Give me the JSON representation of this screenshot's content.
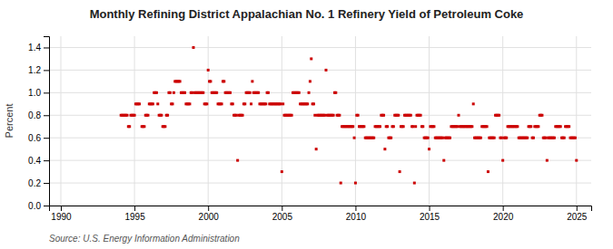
{
  "chart_data": {
    "type": "scatter",
    "title": "Monthly Refining District Appalachian No. 1 Refinery Yield of Petroleum Coke",
    "ylabel": "Percent",
    "annotation": "Source: U.S. Energy Information Administration",
    "color": "#cc0000",
    "marker": "square",
    "grid": true,
    "xlim": [
      1989.2,
      2026.0
    ],
    "ylim": [
      0.0,
      1.5
    ],
    "xticks": [
      1990,
      1995,
      2000,
      2005,
      2010,
      2015,
      2020,
      2025
    ],
    "yticks": [
      {
        "value": 0.0,
        "label": "0.0"
      },
      0.2,
      0.4,
      0.6,
      0.8,
      {
        "value": 1.0,
        "label": "1.0"
      },
      1.2,
      1.4
    ],
    "x": [
      1994.083,
      1994.167,
      1994.25,
      1994.333,
      1994.417,
      1994.5,
      1994.583,
      1994.667,
      1994.75,
      1994.833,
      1994.917,
      1995.0,
      1995.083,
      1995.167,
      1995.25,
      1995.333,
      1995.5,
      1995.583,
      1995.667,
      1995.75,
      1995.833,
      1995.917,
      1996.0,
      1996.083,
      1996.167,
      1996.25,
      1996.333,
      1996.417,
      1996.5,
      1996.583,
      1996.667,
      1996.75,
      1996.833,
      1996.917,
      1997.0,
      1997.083,
      1997.167,
      1997.25,
      1997.333,
      1997.417,
      1997.5,
      1997.583,
      1997.667,
      1997.75,
      1997.833,
      1997.917,
      1998.0,
      1998.083,
      1998.167,
      1998.25,
      1998.333,
      1998.417,
      1998.5,
      1998.583,
      1998.667,
      1998.75,
      1998.833,
      1998.917,
      1999.0,
      1999.083,
      1999.167,
      1999.25,
      1999.333,
      1999.417,
      1999.5,
      1999.583,
      1999.667,
      1999.75,
      1999.833,
      1999.917,
      2000.0,
      2000.083,
      2000.167,
      2000.25,
      2000.333,
      2000.417,
      2000.5,
      2000.583,
      2000.667,
      2000.75,
      2000.833,
      2000.917,
      2001.0,
      2001.083,
      2001.167,
      2001.25,
      2001.333,
      2001.417,
      2001.5,
      2001.583,
      2001.667,
      2001.75,
      2001.833,
      2001.917,
      2002.0,
      2002.083,
      2002.167,
      2002.25,
      2002.333,
      2002.417,
      2002.5,
      2002.583,
      2002.667,
      2002.75,
      2002.833,
      2002.917,
      2003.0,
      2003.083,
      2003.167,
      2003.25,
      2003.333,
      2003.417,
      2003.5,
      2003.583,
      2003.667,
      2003.75,
      2003.833,
      2003.917,
      2004.0,
      2004.083,
      2004.167,
      2004.25,
      2004.333,
      2004.417,
      2004.5,
      2004.583,
      2004.667,
      2004.75,
      2004.833,
      2004.917,
      2005.0,
      2005.083,
      2005.167,
      2005.25,
      2005.333,
      2005.417,
      2005.5,
      2005.583,
      2005.667,
      2005.75,
      2005.833,
      2005.917,
      2006.0,
      2006.083,
      2006.167,
      2006.25,
      2006.333,
      2006.417,
      2006.5,
      2006.583,
      2006.667,
      2006.75,
      2006.833,
      2006.917,
      2007.0,
      2007.083,
      2007.167,
      2007.25,
      2007.333,
      2007.417,
      2007.5,
      2007.583,
      2007.667,
      2007.75,
      2007.833,
      2007.917,
      2008.0,
      2008.083,
      2008.167,
      2008.25,
      2008.333,
      2008.417,
      2008.5,
      2008.583,
      2008.667,
      2008.75,
      2008.833,
      2008.917,
      2009.0,
      2009.083,
      2009.167,
      2009.25,
      2009.333,
      2009.417,
      2009.5,
      2009.583,
      2009.667,
      2009.75,
      2009.833,
      2009.917,
      2010.0,
      2010.083,
      2010.167,
      2010.25,
      2010.333,
      2010.417,
      2010.5,
      2010.583,
      2010.667,
      2010.75,
      2010.833,
      2010.917,
      2011.0,
      2011.083,
      2011.167,
      2011.25,
      2011.333,
      2011.417,
      2011.5,
      2011.583,
      2011.667,
      2011.75,
      2011.833,
      2011.917,
      2012.0,
      2012.083,
      2012.167,
      2012.25,
      2012.333,
      2012.417,
      2012.5,
      2012.583,
      2012.667,
      2012.75,
      2012.833,
      2012.917,
      2013.0,
      2013.083,
      2013.167,
      2013.25,
      2013.333,
      2013.417,
      2013.5,
      2013.583,
      2013.667,
      2013.75,
      2013.833,
      2013.917,
      2014.0,
      2014.083,
      2014.167,
      2014.25,
      2014.333,
      2014.417,
      2014.5,
      2014.583,
      2014.667,
      2014.75,
      2014.833,
      2014.917,
      2015.0,
      2015.083,
      2015.167,
      2015.25,
      2015.333,
      2015.417,
      2015.5,
      2015.583,
      2015.667,
      2015.75,
      2015.833,
      2015.917,
      2016.0,
      2016.083,
      2016.167,
      2016.25,
      2016.333,
      2016.417,
      2016.5,
      2016.583,
      2016.667,
      2016.75,
      2016.833,
      2016.917,
      2017.0,
      2017.083,
      2017.167,
      2017.25,
      2017.333,
      2017.417,
      2017.5,
      2017.583,
      2017.667,
      2017.75,
      2017.833,
      2017.917,
      2018.0,
      2018.083,
      2018.167,
      2018.25,
      2018.333,
      2018.417,
      2018.5,
      2018.583,
      2018.667,
      2018.75,
      2018.833,
      2018.917,
      2019.0,
      2019.083,
      2019.167,
      2019.25,
      2019.333,
      2019.417,
      2019.5,
      2019.583,
      2019.667,
      2019.75,
      2019.833,
      2019.917,
      2020.0,
      2020.083,
      2020.167,
      2020.25,
      2020.333,
      2020.417,
      2020.5,
      2020.583,
      2020.667,
      2020.75,
      2020.833,
      2020.917,
      2021.0,
      2021.083,
      2021.167,
      2021.25,
      2021.333,
      2021.417,
      2021.5,
      2021.583,
      2021.667,
      2021.75,
      2021.833,
      2021.917,
      2022.0,
      2022.083,
      2022.167,
      2022.25,
      2022.333,
      2022.417,
      2022.5,
      2022.583,
      2022.667,
      2022.75,
      2022.833,
      2022.917,
      2023.0,
      2023.083,
      2023.167,
      2023.25,
      2023.333,
      2023.417,
      2023.5,
      2023.583,
      2023.667,
      2023.75,
      2023.833,
      2023.917,
      2024.0,
      2024.083,
      2024.167,
      2024.25,
      2024.333,
      2024.417,
      2024.5,
      2024.583,
      2024.667,
      2024.75,
      2024.833,
      2024.917,
      2025.0
    ],
    "values": [
      0.8,
      0.8,
      0.8,
      0.8,
      0.8,
      0.8,
      0.7,
      0.7,
      0.8,
      0.8,
      0.8,
      0.8,
      0.9,
      0.9,
      0.9,
      0.9,
      0.7,
      0.7,
      0.7,
      0.8,
      0.8,
      0.8,
      0.9,
      0.9,
      0.9,
      0.9,
      1.0,
      1.0,
      1.0,
      0.9,
      0.8,
      0.8,
      0.8,
      0.7,
      0.7,
      0.7,
      0.8,
      0.8,
      1.0,
      1.0,
      0.9,
      0.9,
      1.0,
      1.1,
      1.1,
      1.1,
      1.1,
      1.1,
      1.0,
      1.0,
      1.0,
      1.0,
      0.9,
      0.9,
      0.9,
      0.9,
      1.0,
      1.0,
      1.4,
      1.0,
      1.0,
      1.0,
      1.0,
      1.0,
      1.0,
      1.0,
      1.0,
      0.9,
      0.9,
      0.9,
      1.2,
      1.1,
      1.1,
      1.0,
      1.0,
      1.0,
      1.0,
      1.0,
      0.9,
      0.9,
      0.9,
      0.9,
      1.1,
      1.1,
      1.0,
      1.0,
      1.0,
      1.0,
      1.0,
      0.9,
      0.9,
      0.8,
      0.8,
      0.8,
      0.4,
      0.8,
      0.8,
      0.8,
      0.8,
      0.9,
      0.9,
      1.0,
      1.0,
      1.0,
      1.0,
      0.9,
      1.1,
      1.0,
      1.0,
      1.0,
      1.0,
      1.0,
      0.9,
      0.9,
      0.9,
      0.9,
      0.9,
      0.9,
      1.0,
      1.0,
      0.9,
      0.9,
      0.9,
      0.9,
      0.9,
      0.9,
      0.9,
      0.9,
      0.9,
      0.9,
      0.3,
      0.9,
      0.8,
      0.8,
      0.8,
      0.8,
      0.8,
      0.8,
      0.8,
      1.0,
      1.0,
      1.0,
      1.0,
      1.0,
      1.0,
      0.9,
      0.9,
      0.9,
      0.9,
      0.9,
      0.9,
      0.9,
      1.0,
      1.1,
      1.3,
      0.9,
      0.9,
      0.8,
      0.5,
      0.8,
      0.8,
      0.8,
      0.8,
      0.8,
      0.8,
      0.8,
      1.2,
      0.8,
      0.8,
      0.8,
      0.8,
      0.8,
      0.8,
      1.0,
      1.0,
      0.8,
      0.8,
      0.8,
      0.2,
      0.7,
      0.7,
      0.7,
      0.7,
      0.7,
      0.7,
      0.7,
      0.7,
      0.7,
      0.7,
      0.6,
      0.2,
      0.8,
      0.8,
      0.7,
      0.7,
      0.7,
      0.7,
      0.7,
      0.6,
      0.6,
      0.6,
      0.6,
      0.6,
      0.6,
      0.6,
      0.6,
      0.7,
      0.7,
      0.7,
      0.7,
      0.7,
      0.8,
      0.8,
      0.8,
      0.5,
      0.7,
      0.7,
      0.6,
      0.6,
      0.6,
      0.7,
      0.7,
      0.8,
      0.8,
      0.8,
      0.8,
      0.3,
      0.7,
      0.7,
      0.7,
      0.8,
      0.8,
      0.8,
      0.8,
      0.8,
      0.8,
      0.7,
      0.7,
      0.2,
      0.7,
      0.8,
      0.8,
      0.8,
      0.8,
      0.7,
      0.7,
      0.6,
      0.6,
      0.6,
      0.6,
      0.5,
      0.7,
      0.7,
      0.7,
      0.7,
      0.6,
      0.6,
      0.6,
      0.6,
      0.6,
      0.6,
      0.6,
      0.4,
      0.6,
      0.6,
      0.6,
      0.6,
      0.6,
      0.7,
      0.7,
      0.7,
      0.7,
      0.7,
      0.7,
      0.8,
      0.7,
      0.7,
      0.7,
      0.7,
      0.7,
      0.7,
      0.7,
      0.7,
      0.7,
      0.7,
      0.7,
      0.9,
      0.6,
      0.6,
      0.6,
      0.6,
      0.6,
      0.6,
      0.7,
      0.7,
      0.7,
      0.7,
      0.7,
      0.3,
      0.6,
      0.6,
      0.6,
      0.6,
      0.6,
      0.8,
      0.8,
      0.8,
      0.8,
      0.6,
      0.6,
      0.4,
      0.6,
      0.6,
      0.6,
      0.7,
      0.7,
      0.7,
      0.7,
      0.7,
      0.7,
      0.7,
      0.7,
      0.7,
      0.6,
      0.6,
      0.6,
      0.6,
      0.6,
      0.6,
      0.6,
      0.6,
      0.7,
      0.7,
      0.7,
      0.6,
      0.6,
      0.7,
      0.7,
      0.7,
      0.7,
      0.8,
      0.8,
      0.8,
      0.6,
      0.6,
      0.6,
      0.4,
      0.6,
      0.6,
      0.6,
      0.6,
      0.6,
      0.6,
      0.7,
      0.7,
      0.7,
      0.7,
      0.7,
      0.6,
      0.6,
      0.6,
      0.7,
      0.7,
      0.7,
      0.7,
      0.6,
      0.6,
      0.6,
      0.6,
      0.6,
      0.4
    ]
  }
}
